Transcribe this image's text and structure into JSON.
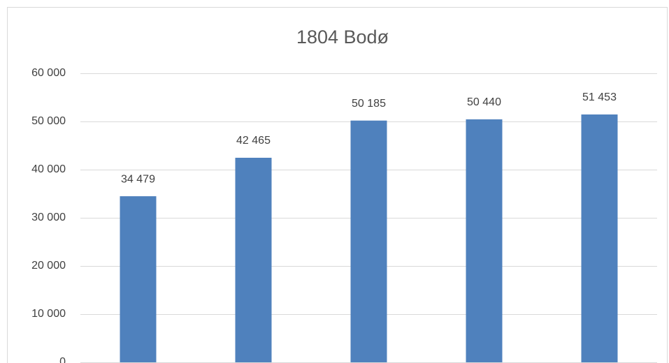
{
  "chart_data": {
    "type": "bar",
    "title": "1804 Bodø",
    "categories": [
      null,
      null,
      null,
      null,
      null
    ],
    "values": [
      34479,
      42465,
      50185,
      50440,
      51453
    ],
    "value_labels": [
      "34 479",
      "42 465",
      "50 185",
      "50 440",
      "51 453"
    ],
    "color": "#4f81bd",
    "ylim": [
      0,
      60000
    ],
    "yticks": [
      0,
      {
        "value": 10000,
        "label": "10 000"
      },
      {
        "value": 20000,
        "label": "20 000"
      },
      {
        "value": 30000,
        "label": "30 000"
      },
      {
        "value": 40000,
        "label": "40 000"
      },
      {
        "value": 50000,
        "label": "50 000"
      },
      {
        "value": 60000,
        "label": "60 000"
      }
    ],
    "grid": true
  }
}
